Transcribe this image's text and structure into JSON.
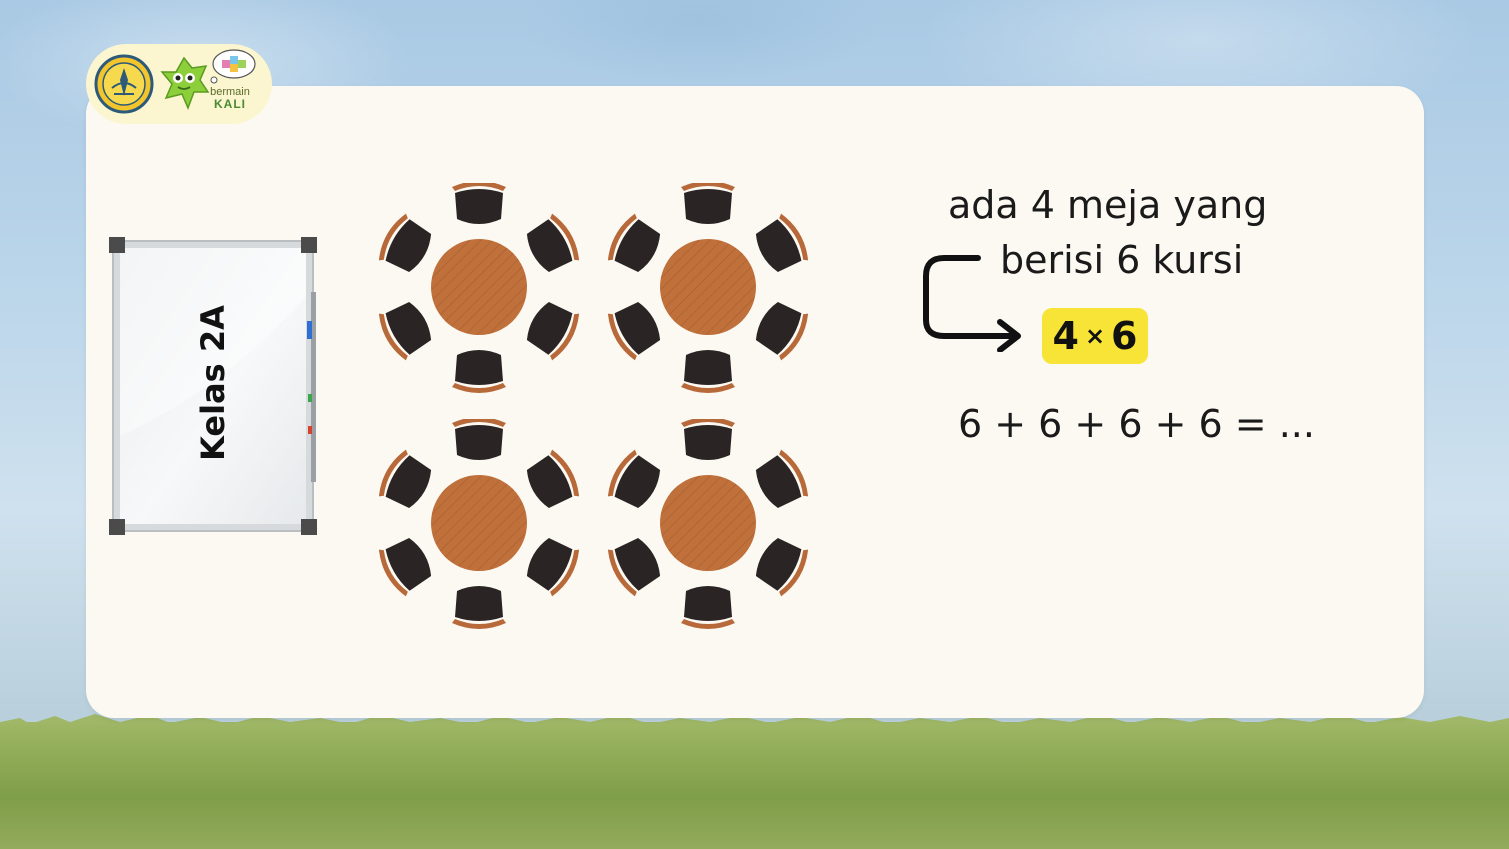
{
  "logo": {
    "brand_line1": "bermain",
    "brand_line2": "KALI"
  },
  "whiteboard": {
    "label": "Kelas 2A"
  },
  "tables": {
    "count": 4,
    "chairs_per_table": 6
  },
  "problem": {
    "line1": "ada 4 meja yang",
    "line2": "berisi 6 kursi",
    "multiplication": {
      "left": "4",
      "operator": "×",
      "right": "6"
    },
    "equation": "6 + 6 + 6 + 6 = ..."
  },
  "colors": {
    "card": "#fbf9f2",
    "table": "#c0703a",
    "chair": "#2b2424",
    "chair_back": "#b8693a",
    "highlight": "#f7e437",
    "grass": "#8eaa55"
  }
}
